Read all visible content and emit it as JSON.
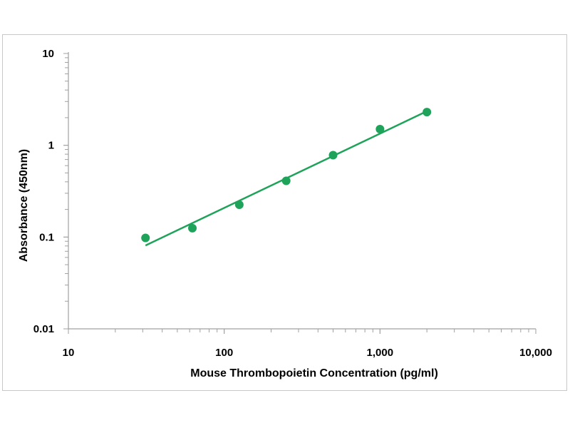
{
  "chart_data": {
    "type": "scatter",
    "title": "",
    "xlabel": "Mouse Thrombopoietin Concentration (pg/ml)",
    "ylabel": "Absorbance (450nm)",
    "x_scale": "log",
    "y_scale": "log",
    "xlim": [
      10,
      10000
    ],
    "ylim": [
      0.01,
      10
    ],
    "x_ticks": [
      10,
      100,
      1000,
      10000
    ],
    "x_tick_labels": [
      "10",
      "100",
      "1,000",
      "10,000"
    ],
    "y_ticks": [
      0.01,
      0.1,
      1,
      10
    ],
    "y_tick_labels": [
      "0.01",
      "0.1",
      "1",
      "10"
    ],
    "grid": false,
    "series": [
      {
        "x": [
          31.25,
          62.5,
          125,
          250,
          500,
          1000,
          2000
        ],
        "y": [
          0.098,
          0.125,
          0.225,
          0.41,
          0.78,
          1.5,
          2.3
        ]
      }
    ],
    "fit_line": {
      "x": [
        31.25,
        2000
      ],
      "y": [
        0.081,
        2.35
      ]
    },
    "color": "#1fa35a"
  }
}
